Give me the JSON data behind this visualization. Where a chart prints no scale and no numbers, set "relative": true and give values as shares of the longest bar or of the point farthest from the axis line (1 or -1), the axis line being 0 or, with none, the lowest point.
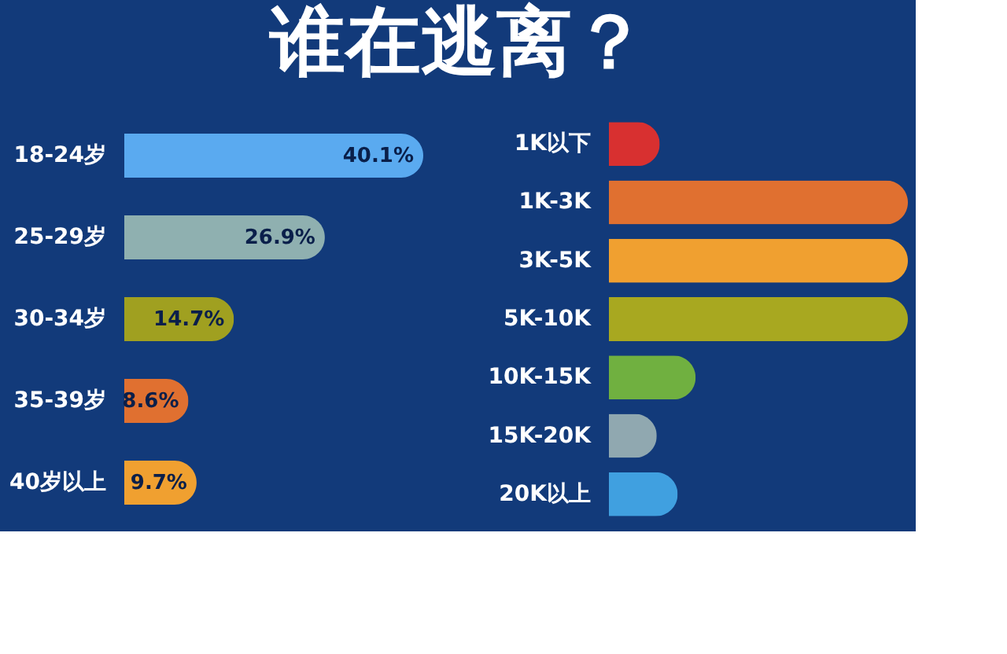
{
  "chart_data": [
    {
      "type": "bar",
      "title": "谁在逃离？",
      "orientation": "horizontal",
      "value_labels": [
        "40.1%",
        "26.9%",
        "14.7%",
        "8.6%",
        "9.7%"
      ],
      "categories": [
        "18-24岁",
        "25-29岁",
        "30-34岁",
        "35-39岁",
        "40岁以上"
      ],
      "values": [
        40.1,
        26.9,
        14.7,
        8.6,
        9.7
      ],
      "colors": [
        "#5aaaf0",
        "#8fb0b0",
        "#a0a020",
        "#e07030",
        "#f0a030"
      ]
    },
    {
      "type": "bar",
      "orientation": "horizontal",
      "relative": true,
      "categories": [
        "1K以下",
        "1K-3K",
        "3K-5K",
        "5K-10K",
        "10K-15K",
        "15K-20K",
        "20K以上"
      ],
      "values": [
        0.17,
        1,
        1,
        1,
        0.29,
        0.16,
        0.23
      ],
      "colors": [
        "#d83030",
        "#e07030",
        "#f0a030",
        "#a8a820",
        "#70b040",
        "#90a8b0",
        "#40a0e0"
      ]
    }
  ]
}
